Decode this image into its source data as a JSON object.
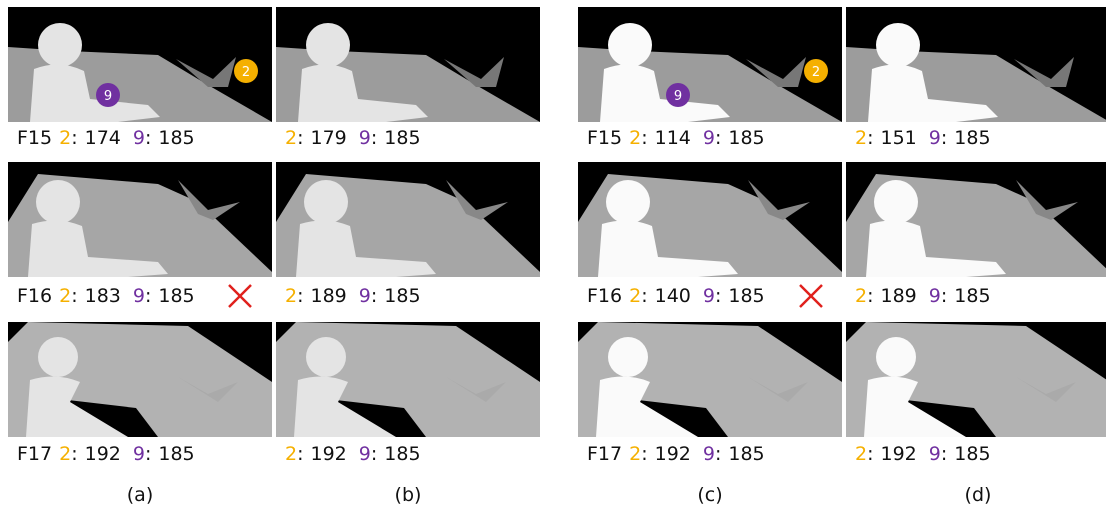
{
  "separator": ":",
  "panels": [
    {
      "label": "(a)",
      "rows": [
        {
          "frame": "F15",
          "items": [
            {
              "id": 2,
              "color": "#f5b000",
              "value": 174
            },
            {
              "id": 9,
              "color": "#7030a0",
              "value": 185
            }
          ]
        },
        {
          "frame": "F16",
          "items": [
            {
              "id": 2,
              "color": "#f5b000",
              "value": 183
            },
            {
              "id": 9,
              "color": "#7030a0",
              "value": 185
            }
          ]
        },
        {
          "frame": "F17",
          "items": [
            {
              "id": 2,
              "color": "#f5b000",
              "value": 192
            },
            {
              "id": 9,
              "color": "#7030a0",
              "value": 185
            }
          ]
        }
      ]
    },
    {
      "label": "(b)",
      "rows": [
        {
          "items": [
            {
              "id": 2,
              "color": "#f5b000",
              "value": 179
            },
            {
              "id": 9,
              "color": "#7030a0",
              "value": 185
            }
          ]
        },
        {
          "items": [
            {
              "id": 2,
              "color": "#f5b000",
              "value": 189
            },
            {
              "id": 9,
              "color": "#7030a0",
              "value": 185
            }
          ]
        },
        {
          "items": [
            {
              "id": 2,
              "color": "#f5b000",
              "value": 192
            },
            {
              "id": 9,
              "color": "#7030a0",
              "value": 185
            }
          ]
        }
      ]
    },
    {
      "label": "(c)",
      "rows": [
        {
          "frame": "F15",
          "items": [
            {
              "id": 2,
              "color": "#f5b000",
              "value": 114
            },
            {
              "id": 9,
              "color": "#7030a0",
              "value": 185
            }
          ]
        },
        {
          "frame": "F16",
          "items": [
            {
              "id": 2,
              "color": "#f5b000",
              "value": 140
            },
            {
              "id": 9,
              "color": "#7030a0",
              "value": 185
            }
          ]
        },
        {
          "frame": "F17",
          "items": [
            {
              "id": 2,
              "color": "#f5b000",
              "value": 192
            },
            {
              "id": 9,
              "color": "#7030a0",
              "value": 185
            }
          ]
        }
      ]
    },
    {
      "label": "(d)",
      "rows": [
        {
          "items": [
            {
              "id": 2,
              "color": "#f5b000",
              "value": 151
            },
            {
              "id": 9,
              "color": "#7030a0",
              "value": 185
            }
          ]
        },
        {
          "items": [
            {
              "id": 2,
              "color": "#f5b000",
              "value": 189
            },
            {
              "id": 9,
              "color": "#7030a0",
              "value": 185
            }
          ]
        },
        {
          "items": [
            {
              "id": 2,
              "color": "#f5b000",
              "value": 192
            },
            {
              "id": 9,
              "color": "#7030a0",
              "value": 185
            }
          ]
        }
      ]
    }
  ]
}
